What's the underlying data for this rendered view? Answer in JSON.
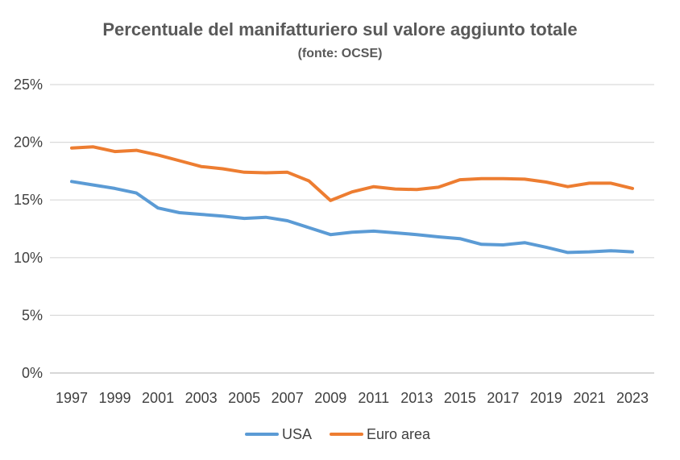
{
  "chart_data": {
    "type": "line",
    "title": "Percentuale del manifatturiero sul valore aggiunto totale",
    "subtitle": "(fonte: OCSE)",
    "xlabel": "",
    "ylabel": "",
    "x": [
      1997,
      1998,
      1999,
      2000,
      2001,
      2002,
      2003,
      2004,
      2005,
      2006,
      2007,
      2008,
      2009,
      2010,
      2011,
      2012,
      2013,
      2014,
      2015,
      2016,
      2017,
      2018,
      2019,
      2020,
      2021,
      2022,
      2023
    ],
    "x_tick_labels": [
      "1997",
      "1999",
      "2001",
      "2003",
      "2005",
      "2007",
      "2009",
      "2011",
      "2013",
      "2015",
      "2017",
      "2019",
      "2021",
      "2023"
    ],
    "y_tick_labels": [
      "0%",
      "5%",
      "10%",
      "15%",
      "20%",
      "25%"
    ],
    "ylim": [
      0,
      25
    ],
    "grid": "horizontal",
    "legend_position": "bottom",
    "series": [
      {
        "name": "USA",
        "color": "#5B9BD5",
        "values": [
          16.6,
          16.3,
          16.0,
          15.6,
          14.3,
          13.9,
          13.75,
          13.6,
          13.4,
          13.5,
          13.2,
          12.6,
          12.0,
          12.2,
          12.3,
          12.15,
          12.0,
          11.8,
          11.65,
          11.15,
          11.1,
          11.3,
          10.9,
          10.45,
          10.5,
          10.6,
          10.5
        ]
      },
      {
        "name": "Euro area",
        "color": "#ED7D31",
        "values": [
          19.5,
          19.6,
          19.2,
          19.3,
          18.9,
          18.4,
          17.9,
          17.7,
          17.4,
          17.35,
          17.4,
          16.65,
          14.95,
          15.7,
          16.15,
          15.95,
          15.9,
          16.1,
          16.75,
          16.85,
          16.85,
          16.8,
          16.55,
          16.15,
          16.45,
          16.45,
          16.0
        ]
      }
    ]
  }
}
